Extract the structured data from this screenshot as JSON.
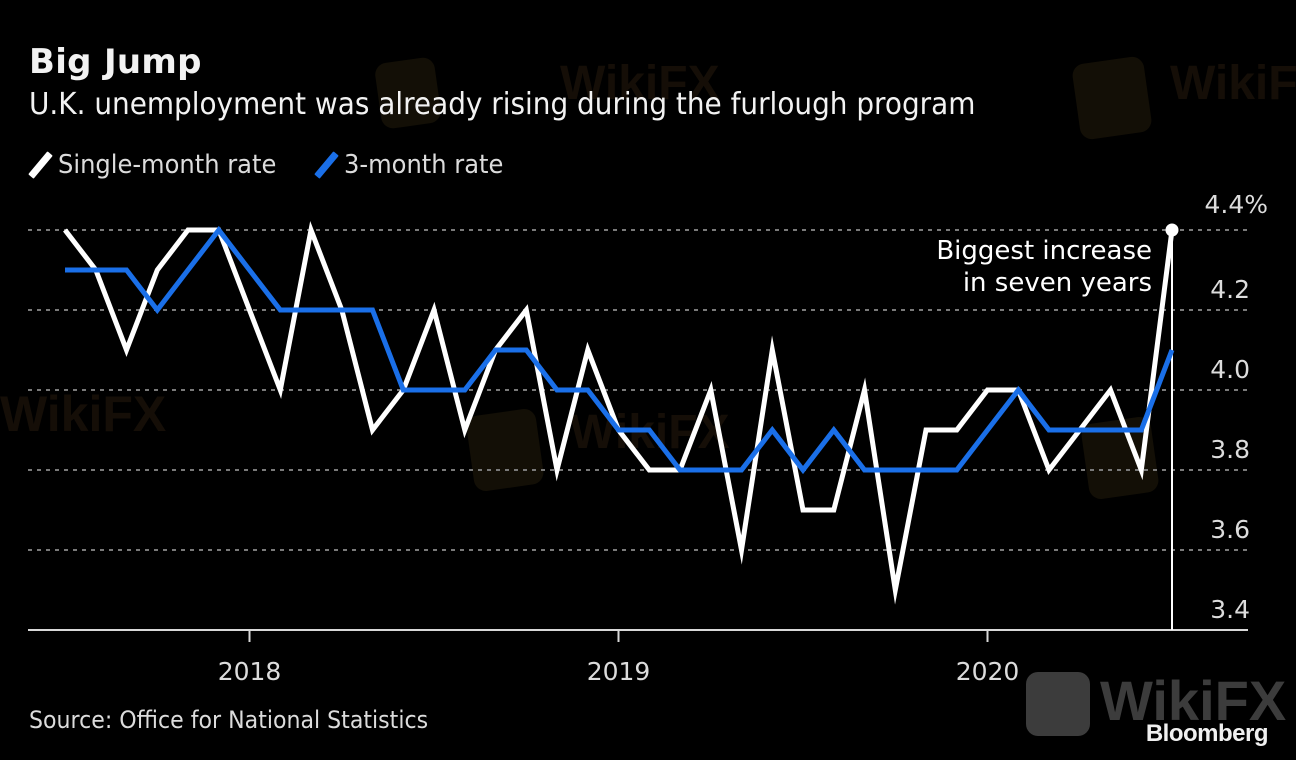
{
  "header": {
    "title": "Big Jump",
    "subtitle": "U.K. unemployment was already rising during the furlough program"
  },
  "legend": [
    {
      "label": "Single-month rate",
      "color": "#ffffff"
    },
    {
      "label": "3-month rate",
      "color": "#1a6fe8"
    }
  ],
  "footer": {
    "source": "Source: Office for National Statistics",
    "brand": "Bloomberg",
    "watermark": "WikiFX"
  },
  "chart_data": {
    "type": "line",
    "title": "Big Jump",
    "subtitle": "U.K. unemployment was already rising during the furlough program",
    "xlabel": "",
    "ylabel": "",
    "x": [
      "2017-07",
      "2017-08",
      "2017-09",
      "2017-10",
      "2017-11",
      "2017-12",
      "2018-01",
      "2018-02",
      "2018-03",
      "2018-04",
      "2018-05",
      "2018-06",
      "2018-07",
      "2018-08",
      "2018-09",
      "2018-10",
      "2018-11",
      "2018-12",
      "2019-01",
      "2019-02",
      "2019-03",
      "2019-04",
      "2019-05",
      "2019-06",
      "2019-07",
      "2019-08",
      "2019-09",
      "2019-10",
      "2019-11",
      "2019-12",
      "2020-01",
      "2020-02",
      "2020-03",
      "2020-04",
      "2020-05",
      "2020-06",
      "2020-07"
    ],
    "x_ticks": [
      {
        "label": "2018",
        "index": 6
      },
      {
        "label": "2019",
        "index": 18
      },
      {
        "label": "2020",
        "index": 30
      }
    ],
    "y_ticks": [
      "3.4",
      "3.6",
      "3.8",
      "4.0",
      "4.2",
      "4.4%"
    ],
    "y_tick_values": [
      3.4,
      3.6,
      3.8,
      4.0,
      4.2,
      4.4
    ],
    "ylim": [
      3.4,
      4.4
    ],
    "grid": true,
    "legend_position": "top-left",
    "series": [
      {
        "name": "Single-month rate",
        "color": "#ffffff",
        "values": [
          4.4,
          4.3,
          4.1,
          4.3,
          4.4,
          4.4,
          4.2,
          4.0,
          4.4,
          4.2,
          3.9,
          4.0,
          4.2,
          3.9,
          4.1,
          4.2,
          3.8,
          4.1,
          3.9,
          3.8,
          3.8,
          4.0,
          3.6,
          4.1,
          3.7,
          3.7,
          4.0,
          3.5,
          3.9,
          3.9,
          4.0,
          4.0,
          3.8,
          3.9,
          4.0,
          3.8,
          4.4
        ]
      },
      {
        "name": "3-month rate",
        "color": "#1a6fe8",
        "values": [
          4.3,
          4.3,
          4.3,
          4.2,
          4.3,
          4.4,
          4.3,
          4.2,
          4.2,
          4.2,
          4.2,
          4.0,
          4.0,
          4.0,
          4.1,
          4.1,
          4.0,
          4.0,
          3.9,
          3.9,
          3.8,
          3.8,
          3.8,
          3.9,
          3.8,
          3.9,
          3.8,
          3.8,
          3.8,
          3.8,
          3.9,
          4.0,
          3.9,
          3.9,
          3.9,
          3.9,
          4.1
        ]
      }
    ],
    "annotations": [
      {
        "text_lines": [
          "Biggest increase",
          "in seven years"
        ],
        "series": "Single-month rate",
        "index": 36,
        "value": 4.4
      }
    ]
  }
}
